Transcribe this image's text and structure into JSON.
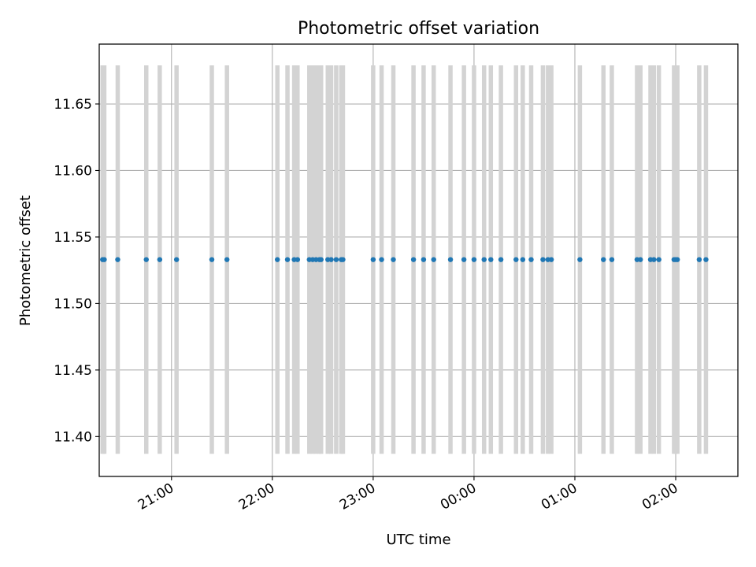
{
  "chart_data": {
    "type": "scatter",
    "title": "Photometric offset variation",
    "xlabel": "UTC time",
    "ylabel": "Photometric offset",
    "x_axis": {
      "kind": "time",
      "min": "20:17",
      "max": "02:37",
      "ticks": [
        "21:00",
        "22:00",
        "23:00",
        "00:00",
        "01:00",
        "02:00"
      ]
    },
    "y_axis": {
      "min": 11.37,
      "max": 11.695,
      "ticks": [
        "11.40",
        "11.45",
        "11.50",
        "11.55",
        "11.60",
        "11.65"
      ]
    },
    "grid": true,
    "colors": {
      "points": "#1f77b4",
      "error_bars": "#d3d3d3",
      "grid": "#b0b0b0"
    },
    "error_bar_range": [
      11.387,
      11.679
    ],
    "value": 11.533,
    "times": [
      "20:19",
      "20:20",
      "20:28",
      "20:45",
      "20:53",
      "21:03",
      "21:24",
      "21:33",
      "22:03",
      "22:09",
      "22:13",
      "22:15",
      "22:22",
      "22:24",
      "22:26",
      "22:28",
      "22:29",
      "22:33",
      "22:35",
      "22:38",
      "22:41",
      "22:42",
      "23:00",
      "23:05",
      "23:12",
      "23:24",
      "23:30",
      "23:36",
      "23:46",
      "23:54",
      "24:00",
      "24:06",
      "24:10",
      "24:16",
      "24:25",
      "24:29",
      "24:34",
      "24:41",
      "24:44",
      "24:46",
      "25:03",
      "25:17",
      "25:22",
      "25:37",
      "25:39",
      "25:45",
      "25:47",
      "25:50",
      "25:59",
      "26:00",
      "26:01",
      "26:14",
      "26:18"
    ]
  }
}
